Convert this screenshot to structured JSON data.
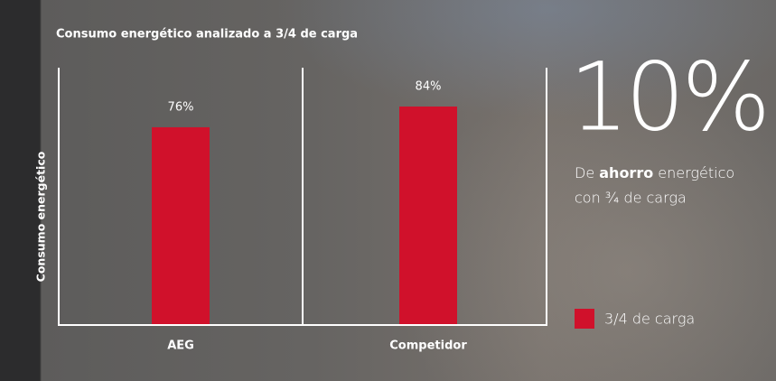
{
  "chart_data": {
    "type": "bar",
    "title": "Consumo energético analizado a 3/4 de carga",
    "y_label": "Consumo energético",
    "categories": [
      "AEG",
      "Competidor"
    ],
    "series": [
      {
        "name": "3/4 de carga",
        "color": "#d0112b",
        "values": [
          76,
          84
        ],
        "value_labels": [
          "76%",
          "84%"
        ]
      }
    ],
    "headline": "10%",
    "annotation": [
      "De ",
      "ahorro",
      " energético",
      "con ¾ de carga"
    ]
  }
}
